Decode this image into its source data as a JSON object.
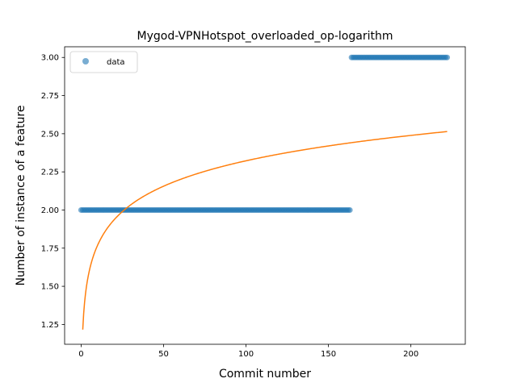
{
  "chart_data": {
    "type": "scatter",
    "title": "Mygod-VPNHotspot_overloaded_op-logarithm",
    "xlabel": "Commit number",
    "ylabel": "Number of instance of a feature",
    "xlim": [
      -10,
      233
    ],
    "ylim": [
      1.12,
      3.07
    ],
    "xticks": [
      0,
      50,
      100,
      150,
      200
    ],
    "yticks": [
      1.25,
      1.5,
      1.75,
      2.0,
      2.25,
      2.5,
      2.75,
      3.0
    ],
    "ytick_labels": [
      "1.25",
      "1.50",
      "1.75",
      "2.00",
      "2.25",
      "2.50",
      "2.75",
      "3.00"
    ],
    "legend": {
      "position": "top-left",
      "entries": [
        "data"
      ]
    },
    "grid": false,
    "series": [
      {
        "name": "data",
        "kind": "scatter",
        "color": "#1f77b4",
        "segments": [
          {
            "x_from": 0,
            "x_to": 163,
            "y": 2.0
          },
          {
            "x_from": 164,
            "x_to": 222,
            "y": 3.0
          }
        ]
      },
      {
        "kind": "line",
        "color": "#ff7f0e",
        "model": "logarithmic",
        "samples": [
          {
            "x": 1,
            "y": 1.18
          },
          {
            "x": 10,
            "y": 1.82
          },
          {
            "x": 28,
            "y": 2.05
          },
          {
            "x": 50,
            "y": 2.15
          },
          {
            "x": 100,
            "y": 2.3
          },
          {
            "x": 150,
            "y": 2.41
          },
          {
            "x": 222,
            "y": 2.505
          }
        ]
      }
    ]
  }
}
